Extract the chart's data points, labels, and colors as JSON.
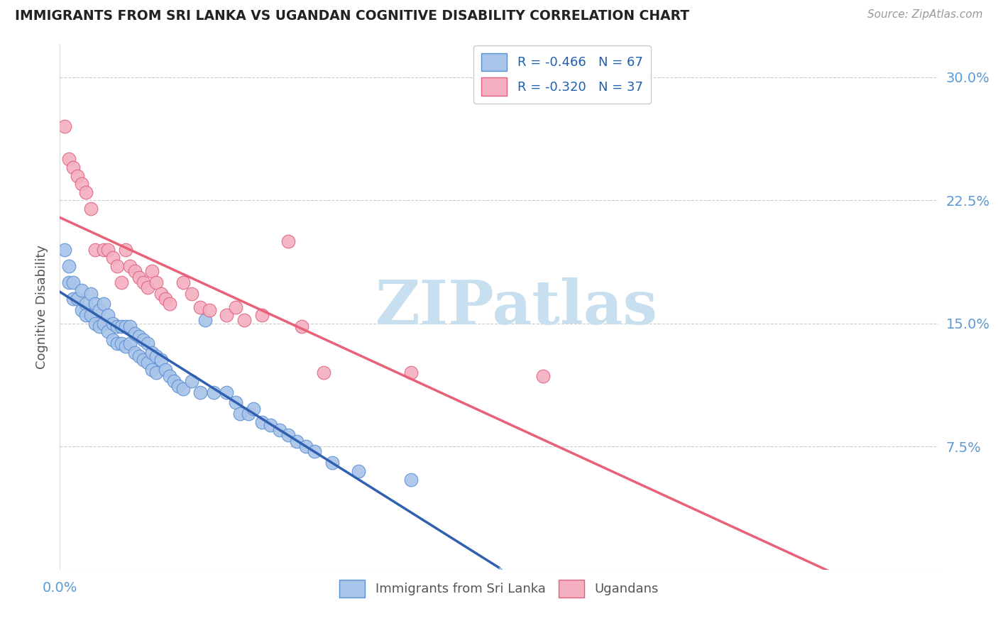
{
  "title": "IMMIGRANTS FROM SRI LANKA VS UGANDAN COGNITIVE DISABILITY CORRELATION CHART",
  "source": "Source: ZipAtlas.com",
  "ylabel": "Cognitive Disability",
  "yticks_labels": [
    "7.5%",
    "15.0%",
    "22.5%",
    "30.0%"
  ],
  "ytick_vals": [
    0.075,
    0.15,
    0.225,
    0.3
  ],
  "legend_label1": "Immigrants from Sri Lanka",
  "legend_label2": "Ugandans",
  "legend_r1": "R = -0.466",
  "legend_n1": "N = 67",
  "legend_r2": "R = -0.320",
  "legend_n2": "N = 37",
  "color_sri_lanka_fill": "#a8c4e8",
  "color_sri_lanka_edge": "#5b8fd4",
  "color_ugandan_fill": "#f4b0c0",
  "color_ugandan_edge": "#e06080",
  "color_sri_lanka_line": "#3060b0",
  "color_ugandan_line": "#e8607a",
  "color_dashed_line": "#90b8e0",
  "watermark_text": "ZIPatlas",
  "watermark_color": "#c8dff0",
  "sri_lanka_x": [
    0.001,
    0.002,
    0.002,
    0.003,
    0.003,
    0.004,
    0.005,
    0.005,
    0.006,
    0.006,
    0.007,
    0.007,
    0.008,
    0.008,
    0.009,
    0.009,
    0.01,
    0.01,
    0.011,
    0.011,
    0.012,
    0.012,
    0.013,
    0.013,
    0.014,
    0.014,
    0.015,
    0.015,
    0.016,
    0.016,
    0.017,
    0.017,
    0.018,
    0.018,
    0.019,
    0.019,
    0.02,
    0.02,
    0.021,
    0.021,
    0.022,
    0.022,
    0.023,
    0.024,
    0.025,
    0.026,
    0.027,
    0.028,
    0.03,
    0.032,
    0.033,
    0.035,
    0.038,
    0.04,
    0.041,
    0.043,
    0.044,
    0.046,
    0.048,
    0.05,
    0.052,
    0.054,
    0.056,
    0.058,
    0.062,
    0.068,
    0.08
  ],
  "sri_lanka_y": [
    0.195,
    0.185,
    0.175,
    0.175,
    0.165,
    0.165,
    0.17,
    0.158,
    0.162,
    0.155,
    0.168,
    0.155,
    0.162,
    0.15,
    0.158,
    0.148,
    0.162,
    0.15,
    0.155,
    0.145,
    0.15,
    0.14,
    0.148,
    0.138,
    0.148,
    0.138,
    0.148,
    0.136,
    0.148,
    0.138,
    0.144,
    0.132,
    0.142,
    0.13,
    0.14,
    0.128,
    0.138,
    0.126,
    0.132,
    0.122,
    0.13,
    0.12,
    0.128,
    0.122,
    0.118,
    0.115,
    0.112,
    0.11,
    0.115,
    0.108,
    0.152,
    0.108,
    0.108,
    0.102,
    0.095,
    0.095,
    0.098,
    0.09,
    0.088,
    0.085,
    0.082,
    0.078,
    0.075,
    0.072,
    0.065,
    0.06,
    0.055
  ],
  "ugandan_x": [
    0.001,
    0.002,
    0.003,
    0.004,
    0.005,
    0.006,
    0.007,
    0.008,
    0.01,
    0.011,
    0.012,
    0.013,
    0.014,
    0.015,
    0.016,
    0.017,
    0.018,
    0.019,
    0.02,
    0.021,
    0.022,
    0.023,
    0.024,
    0.025,
    0.028,
    0.03,
    0.032,
    0.034,
    0.038,
    0.04,
    0.042,
    0.046,
    0.052,
    0.055,
    0.06,
    0.08,
    0.11
  ],
  "ugandan_y": [
    0.27,
    0.25,
    0.245,
    0.24,
    0.235,
    0.23,
    0.22,
    0.195,
    0.195,
    0.195,
    0.19,
    0.185,
    0.175,
    0.195,
    0.185,
    0.182,
    0.178,
    0.175,
    0.172,
    0.182,
    0.175,
    0.168,
    0.165,
    0.162,
    0.175,
    0.168,
    0.16,
    0.158,
    0.155,
    0.16,
    0.152,
    0.155,
    0.2,
    0.148,
    0.12,
    0.12,
    0.118
  ],
  "xmin": 0.0,
  "xmax": 0.2,
  "ymin": 0.0,
  "ymax": 0.32,
  "sl_line_x_end": 0.1,
  "ug_line_x_start": 0.0,
  "ug_line_x_end": 0.2
}
